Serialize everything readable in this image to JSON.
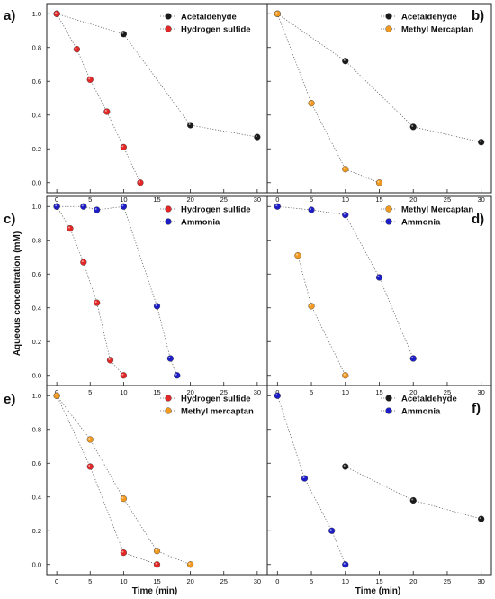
{
  "figure": {
    "y_axis_title": "Aqueous concentration (mM)",
    "x_axis_title": "Time (min)",
    "colors": {
      "black": "#1a1a1a",
      "red": "#e32626",
      "orange": "#f29a1f",
      "blue": "#1d1dc8"
    }
  },
  "chart_data": [
    {
      "type": "scatter",
      "panel_label": "a)",
      "x_ticks": [
        "0",
        "5",
        "10",
        "15",
        "20",
        "25",
        "30"
      ],
      "y_ticks": [
        "0.0",
        "0.2",
        "0.4",
        "0.6",
        "0.8",
        "1.0"
      ],
      "xlim": [
        -1.5,
        31.5
      ],
      "ylim": [
        -0.06,
        1.06
      ],
      "legend_position": "top-right",
      "series": [
        {
          "name": "Acetaldehyde",
          "color": "black",
          "x": [
            0,
            10,
            20,
            30
          ],
          "y": [
            1.0,
            0.88,
            0.34,
            0.27
          ]
        },
        {
          "name": "Hydrogen sulfide",
          "color": "red",
          "x": [
            0,
            3,
            5,
            7.5,
            10,
            12.5
          ],
          "y": [
            1.0,
            0.79,
            0.61,
            0.42,
            0.21,
            0.0
          ]
        }
      ]
    },
    {
      "type": "scatter",
      "panel_label": "b)",
      "x_ticks": [
        "0",
        "5",
        "10",
        "15",
        "20",
        "25",
        "30"
      ],
      "y_ticks": [],
      "xlim": [
        -1.5,
        31.5
      ],
      "ylim": [
        -0.06,
        1.06
      ],
      "legend_position": "top-right",
      "series": [
        {
          "name": "Acetaldehyde",
          "color": "black",
          "x": [
            0,
            10,
            20,
            30
          ],
          "y": [
            1.0,
            0.72,
            0.33,
            0.24
          ]
        },
        {
          "name": "Methyl Mercaptan",
          "color": "orange",
          "x": [
            0,
            5,
            10,
            15
          ],
          "y": [
            1.0,
            0.47,
            0.08,
            0.0
          ]
        }
      ]
    },
    {
      "type": "scatter",
      "panel_label": "c)",
      "x_ticks": [
        "0",
        "5",
        "10",
        "15",
        "20",
        "25",
        "30"
      ],
      "y_ticks": [
        "0.0",
        "0.2",
        "0.4",
        "0.6",
        "0.8",
        "1.0"
      ],
      "xlim": [
        -1.5,
        31.5
      ],
      "ylim": [
        -0.06,
        1.06
      ],
      "legend_position": "top-right",
      "series": [
        {
          "name": "Hydrogen sulfide",
          "color": "red",
          "x": [
            0,
            2,
            4,
            6,
            8,
            10
          ],
          "y": [
            1.0,
            0.87,
            0.67,
            0.43,
            0.09,
            0.0
          ]
        },
        {
          "name": "Ammonia",
          "color": "blue",
          "x": [
            0,
            4,
            6,
            10,
            15,
            17,
            18
          ],
          "y": [
            1.0,
            1.0,
            0.98,
            1.0,
            0.41,
            0.1,
            0.0
          ]
        }
      ]
    },
    {
      "type": "scatter",
      "panel_label": "d)",
      "x_ticks": [
        "0",
        "5",
        "10",
        "15",
        "20",
        "25",
        "30"
      ],
      "y_ticks": [],
      "xlim": [
        -1.5,
        31.5
      ],
      "ylim": [
        -0.06,
        1.06
      ],
      "legend_position": "top-right",
      "series": [
        {
          "name": "Methyl Mercaptan",
          "color": "orange",
          "x": [
            3,
            5,
            10
          ],
          "y": [
            0.71,
            0.41,
            0.0
          ]
        },
        {
          "name": "Ammonia",
          "color": "blue",
          "x": [
            0,
            5,
            10,
            15,
            20
          ],
          "y": [
            1.0,
            0.98,
            0.95,
            0.58,
            0.1
          ]
        }
      ]
    },
    {
      "type": "scatter",
      "panel_label": "e)",
      "x_ticks": [
        "0",
        "5",
        "10",
        "15",
        "20",
        "25",
        "30"
      ],
      "y_ticks": [
        "0.0",
        "0.2",
        "0.4",
        "0.6",
        "0.8",
        "1.0"
      ],
      "xlim": [
        -1.5,
        31.5
      ],
      "ylim": [
        -0.06,
        1.06
      ],
      "legend_position": "top-right",
      "series": [
        {
          "name": "Hydrogen sulfide",
          "color": "red",
          "x": [
            0,
            5,
            10,
            15
          ],
          "y": [
            1.0,
            0.58,
            0.07,
            0.0
          ]
        },
        {
          "name": "Methyl mercaptan",
          "color": "orange",
          "x": [
            0,
            5,
            10,
            15,
            20
          ],
          "y": [
            1.0,
            0.74,
            0.39,
            0.08,
            0.0
          ]
        }
      ]
    },
    {
      "type": "scatter",
      "panel_label": "f)",
      "x_ticks": [
        "0",
        "5",
        "10",
        "15",
        "20",
        "25",
        "30"
      ],
      "y_ticks": [],
      "xlim": [
        -1.5,
        31.5
      ],
      "ylim": [
        -0.06,
        1.06
      ],
      "legend_position": "top-right",
      "series": [
        {
          "name": "Acetaldehyde",
          "color": "black",
          "x": [
            10,
            20,
            30
          ],
          "y": [
            0.58,
            0.38,
            0.27
          ]
        },
        {
          "name": "Ammonia",
          "color": "blue",
          "x": [
            0,
            4,
            8,
            10
          ],
          "y": [
            1.0,
            0.51,
            0.2,
            0.0
          ]
        }
      ]
    }
  ]
}
